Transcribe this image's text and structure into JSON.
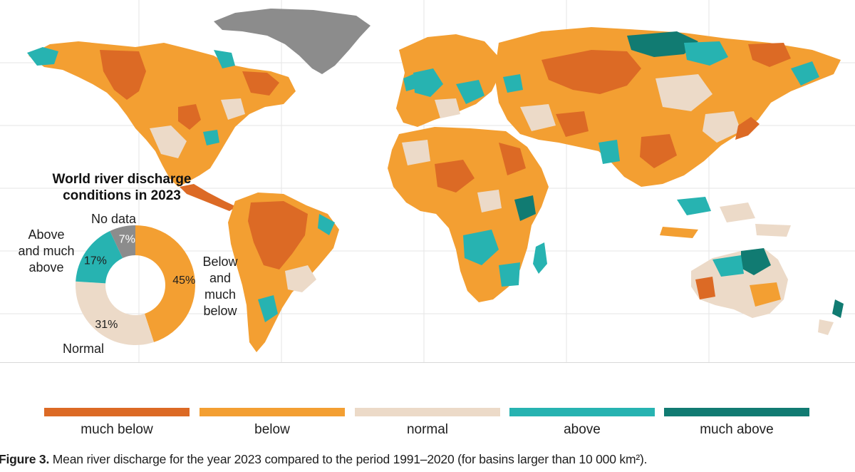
{
  "colors": {
    "much_below": "#dc6a25",
    "below": "#f39f32",
    "normal": "#ecdac8",
    "above": "#27b3b1",
    "much_above": "#117b72",
    "no_data": "#8c8c8c"
  },
  "donut": {
    "title_line1": "World river discharge",
    "title_line2": "conditions in 2023",
    "segments": [
      {
        "key": "below_much_below",
        "percent": 45,
        "label_pct": "45%",
        "color": "#f39f32"
      },
      {
        "key": "normal",
        "percent": 31,
        "label_pct": "31%",
        "color": "#ecdac8"
      },
      {
        "key": "above_much_above",
        "percent": 17,
        "label_pct": "17%",
        "color": "#27b3b1"
      },
      {
        "key": "no_data",
        "percent": 7,
        "label_pct": "7%",
        "color": "#8c8c8c"
      }
    ],
    "labels": {
      "no_data": "No data",
      "above_l1": "Above",
      "above_l2": "and much",
      "above_l3": "above",
      "below_l1": "Below",
      "below_l2": "and",
      "below_l3": "much",
      "below_l4": "below",
      "normal": "Normal"
    }
  },
  "legend": [
    {
      "key": "much_below",
      "label": "much below",
      "color": "#dc6a25"
    },
    {
      "key": "below",
      "label": "below",
      "color": "#f39f32"
    },
    {
      "key": "normal",
      "label": "normal",
      "color": "#ecdac8"
    },
    {
      "key": "above",
      "label": "above",
      "color": "#27b3b1"
    },
    {
      "key": "much_above",
      "label": "much above",
      "color": "#117b72"
    }
  ],
  "caption": {
    "label": "Figure 3.",
    "text": " Mean river discharge for the year 2023 compared to the period 1991–2020 (for basins larger than 10 000 km²)."
  }
}
